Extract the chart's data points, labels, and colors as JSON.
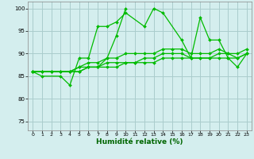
{
  "xlabel": "Humidité relative (%)",
  "bg_color": "#d4eeee",
  "grid_color": "#aacccc",
  "line_color": "#00bb00",
  "xlim": [
    -0.5,
    23.5
  ],
  "ylim": [
    73,
    101.5
  ],
  "yticks": [
    75,
    80,
    85,
    90,
    95,
    100
  ],
  "xticks": [
    0,
    1,
    2,
    3,
    4,
    5,
    6,
    7,
    8,
    9,
    10,
    11,
    12,
    13,
    14,
    15,
    16,
    17,
    18,
    19,
    20,
    21,
    22,
    23
  ],
  "series": [
    [
      86,
      85,
      null,
      85,
      83,
      89,
      89,
      96,
      96,
      97,
      99,
      null,
      96,
      100,
      99,
      null,
      93,
      89,
      98,
      93,
      93,
      89,
      87,
      90
    ],
    [
      86,
      null,
      null,
      null,
      null,
      86,
      87,
      87,
      89,
      94,
      100,
      null,
      null,
      null,
      null,
      null,
      null,
      null,
      null,
      null,
      null,
      null,
      null,
      null
    ],
    [
      86,
      86,
      86,
      86,
      86,
      87,
      88,
      88,
      89,
      89,
      90,
      90,
      90,
      90,
      91,
      91,
      91,
      90,
      90,
      90,
      91,
      90,
      90,
      91
    ],
    [
      86,
      86,
      86,
      86,
      86,
      87,
      87,
      87,
      88,
      88,
      88,
      88,
      89,
      89,
      90,
      90,
      90,
      89,
      89,
      89,
      90,
      90,
      89,
      90
    ],
    [
      86,
      86,
      86,
      86,
      86,
      86,
      87,
      87,
      87,
      87,
      88,
      88,
      88,
      88,
      89,
      89,
      89,
      89,
      89,
      89,
      89,
      89,
      89,
      90
    ]
  ]
}
